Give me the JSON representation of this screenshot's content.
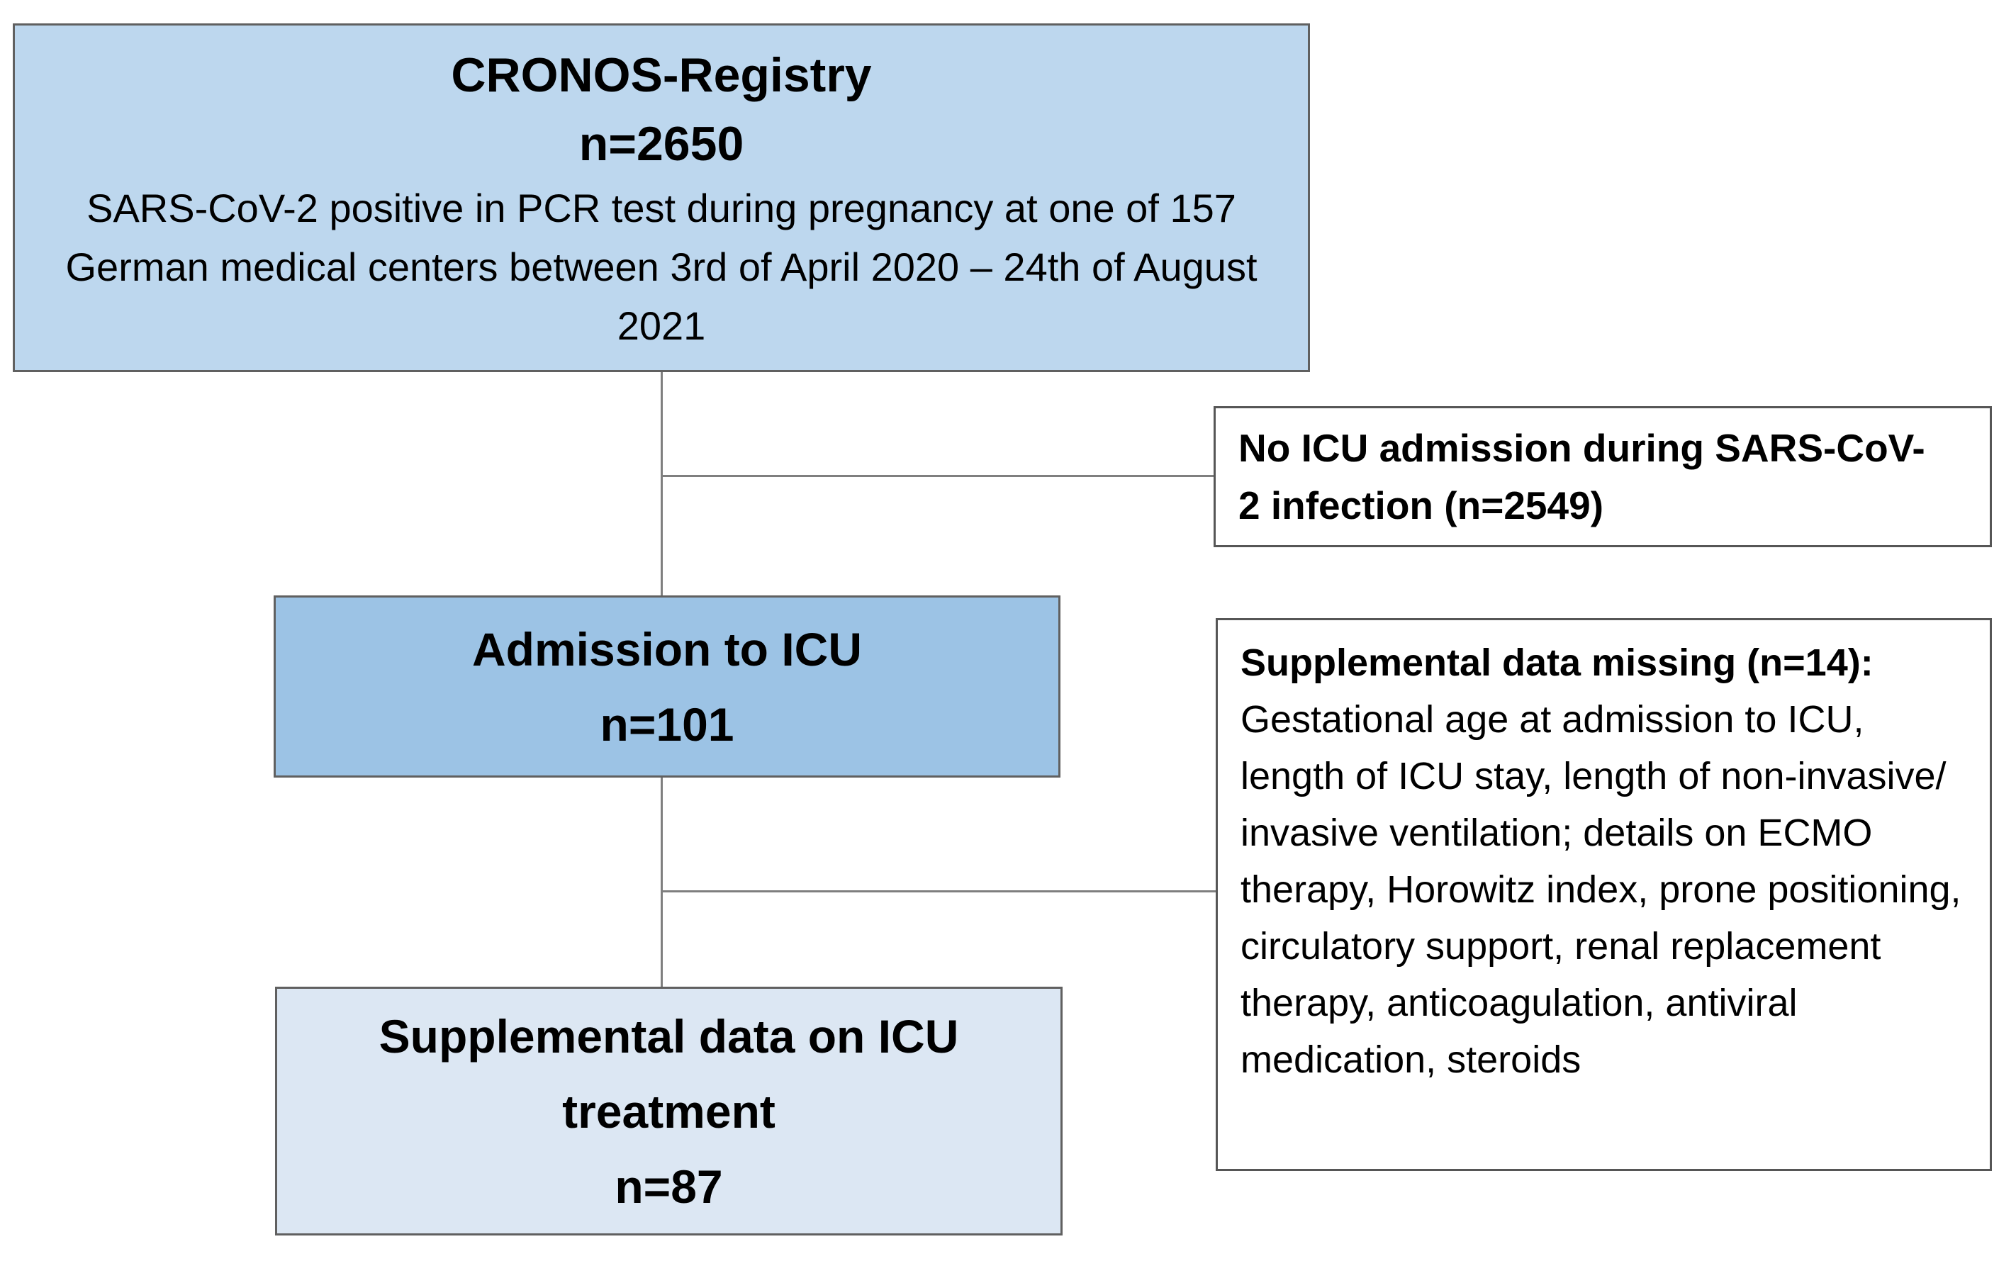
{
  "boxes": {
    "registry": {
      "title": "CRONOS-Registry",
      "n": "n=2650",
      "description": "SARS-CoV-2 positive in PCR test during pregnancy at one of 157 German medical centers between 3rd of April 2020 – 24th of August 2021"
    },
    "no_icu_admission": {
      "text": "No ICU admission during SARS-CoV-2 infection (n=2549)"
    },
    "icu_admission": {
      "title": "Admission to ICU",
      "n": "n=101"
    },
    "supplemental_missing": {
      "title": "Supplemental data missing (n=14):",
      "details": "Gestational age at admission to ICU, length of ICU stay, length of non-invasive/ invasive ventilation; details on ECMO therapy, Horowitz index, prone positioning, circulatory support, renal replacement therapy, anticoagulation, antiviral medication, steroids"
    },
    "supplemental_data": {
      "title": "Supplemental data on ICU treatment",
      "n": "n=87"
    }
  },
  "colors": {
    "registry_fill": "#bdd7ee",
    "icu_admission_fill": "#9cc3e5",
    "supplemental_data_fill": "#dce7f3",
    "side_box_fill": "#ffffff",
    "box_border": "#606060",
    "connector": "#7f7f7f",
    "text": "#000000",
    "background": "#ffffff"
  }
}
